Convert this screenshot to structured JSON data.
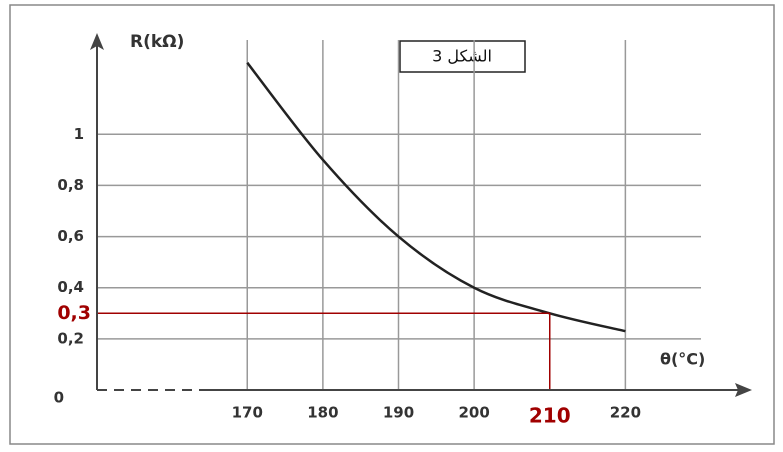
{
  "chart_data": {
    "type": "line",
    "title": "الشكل 3",
    "y_label": "R(kΩ)",
    "x_label": "θ(°C)",
    "x": [
      170,
      180,
      190,
      200,
      210,
      220
    ],
    "series": [
      {
        "color": "#222222",
        "values": [
          1.28,
          0.9,
          0.6,
          0.4,
          0.3,
          0.23
        ]
      }
    ],
    "xlim": [
      150,
      230
    ],
    "ylim": [
      0,
      1.4
    ],
    "xticks": [
      170,
      180,
      190,
      200,
      220
    ],
    "yticks": [
      0,
      {
        "value": 0.2,
        "label": "0,2"
      },
      {
        "value": 0.4,
        "label": "0,4"
      },
      {
        "value": 0.6,
        "label": "0,6"
      },
      {
        "value": 0.8,
        "label": "0,8"
      },
      1
    ],
    "grid": true,
    "guide": {
      "x": 210,
      "y": 0.3,
      "y_label": "0,3",
      "color": "#a00000"
    }
  }
}
